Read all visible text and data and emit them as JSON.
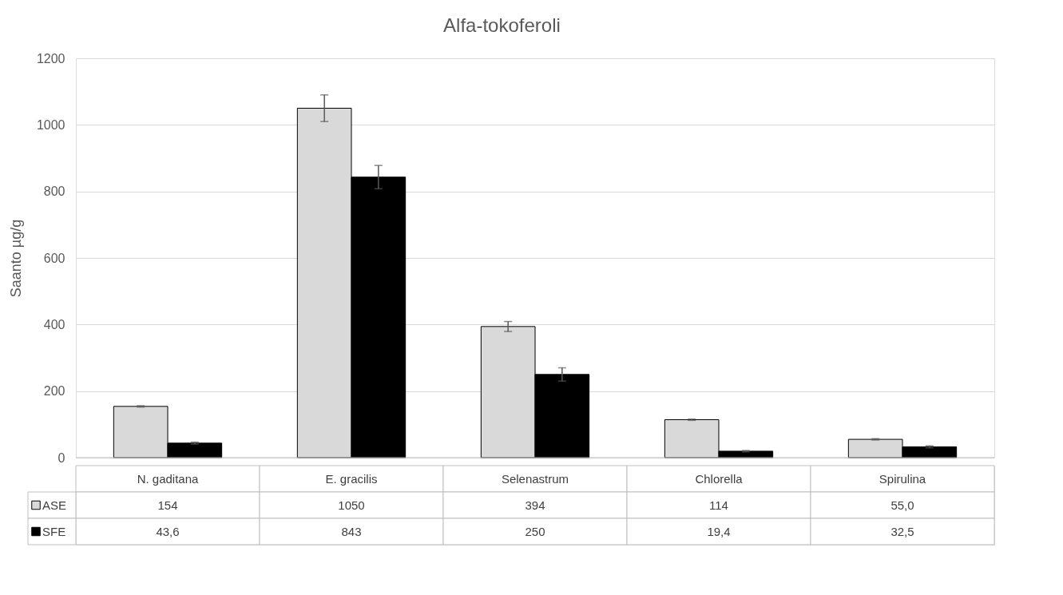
{
  "chart_data": {
    "type": "bar",
    "title": "Alfa-tokoferoli",
    "ylabel": "Saanto µg/g",
    "categories": [
      "N. gaditana",
      "E. gracilis",
      "Selenastrum",
      "Chlorella",
      "Spirulina"
    ],
    "series": [
      {
        "name": "ASE",
        "color": "#d9d9d9",
        "values": [
          154,
          1050,
          394,
          114,
          55.0
        ],
        "errors": [
          2,
          40,
          15,
          2,
          2
        ],
        "value_labels": [
          "154",
          "1050",
          "394",
          "114",
          "55,0"
        ]
      },
      {
        "name": "SFE",
        "color": "#000000",
        "values": [
          43.6,
          843,
          250,
          19.4,
          32.5
        ],
        "errors": [
          3,
          35,
          20,
          2,
          3
        ],
        "value_labels": [
          "43,6",
          "843",
          "250",
          "19,4",
          "32,5"
        ]
      }
    ],
    "ylim": [
      0,
      1200
    ],
    "yticks": [
      0,
      200,
      400,
      600,
      800,
      1000,
      1200
    ],
    "grid": "y",
    "legend": "bottom"
  }
}
